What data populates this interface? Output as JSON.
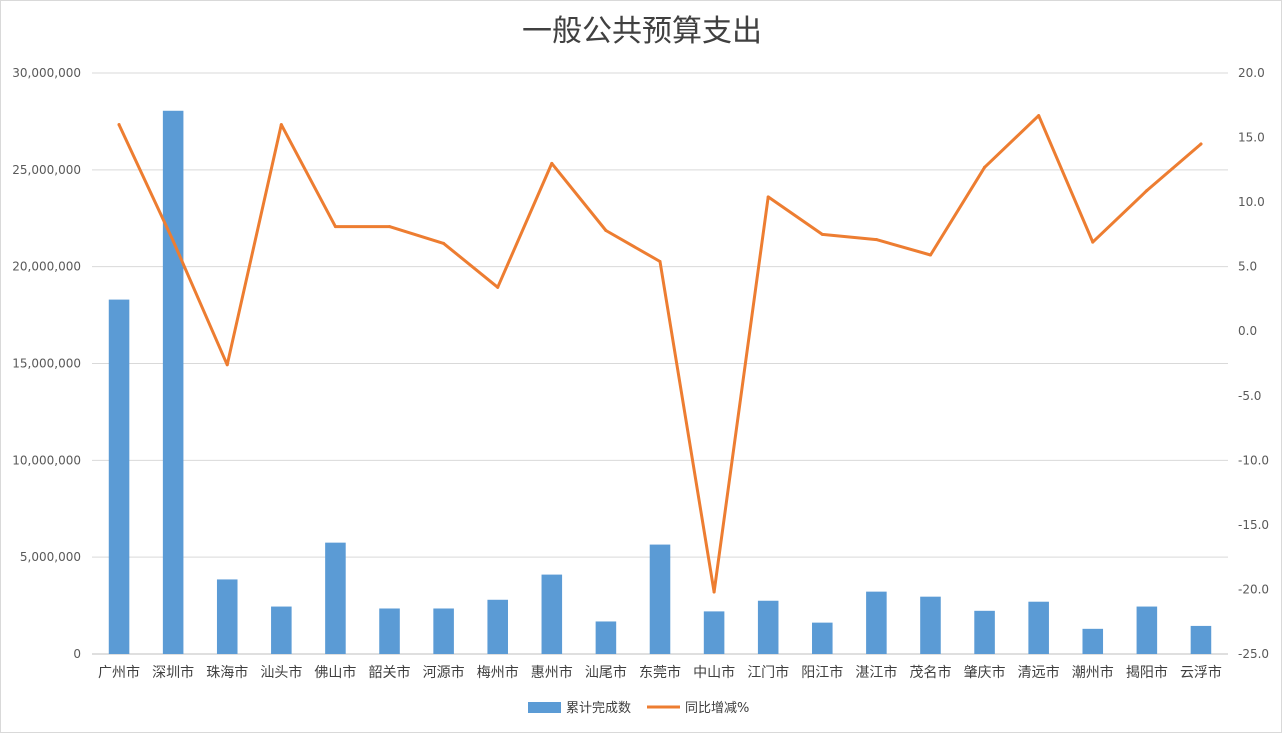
{
  "chart_data": {
    "type": "bar",
    "title": "一般公共预算支出",
    "categories": [
      "广州市",
      "深圳市",
      "珠海市",
      "汕头市",
      "佛山市",
      "韶关市",
      "河源市",
      "梅州市",
      "惠州市",
      "汕尾市",
      "东莞市",
      "中山市",
      "江门市",
      "阳江市",
      "湛江市",
      "茂名市",
      "肇庆市",
      "清远市",
      "潮州市",
      "揭阳市",
      "云浮市"
    ],
    "series": [
      {
        "name": "累计完成数",
        "type": "bar",
        "axis": "left",
        "color": "#5b9bd5",
        "values": [
          18300000,
          28050000,
          3850000,
          2450000,
          5750000,
          2350000,
          2350000,
          2800000,
          4100000,
          1680000,
          5650000,
          2200000,
          2750000,
          1620000,
          3220000,
          2960000,
          2230000,
          2700000,
          1300000,
          2450000,
          1450000
        ]
      },
      {
        "name": "同比增减%",
        "type": "line",
        "axis": "right",
        "color": "#ed7d31",
        "values": [
          16.0,
          7.0,
          -2.6,
          16.0,
          8.1,
          8.1,
          6.8,
          3.4,
          13.0,
          7.8,
          5.4,
          -20.2,
          10.4,
          7.5,
          7.1,
          5.9,
          12.7,
          16.7,
          6.9,
          10.9,
          14.5
        ]
      }
    ],
    "left_axis": {
      "ylim": [
        0,
        30000000
      ],
      "ticks": [
        0,
        5000000,
        10000000,
        15000000,
        20000000,
        25000000,
        30000000
      ],
      "tick_labels": [
        "0",
        "5,000,000",
        "10,000,000",
        "15,000,000",
        "20,000,000",
        "25,000,000",
        "30,000,000"
      ]
    },
    "right_axis": {
      "ylim": [
        -25,
        20
      ],
      "ticks": [
        20,
        15,
        10,
        5,
        0,
        -5,
        -10,
        -15,
        -20,
        -25
      ],
      "tick_labels": [
        "20.0",
        "15.0",
        "10.0",
        "5.0",
        "0.0",
        "-5.0",
        "-10.0",
        "-15.0",
        "-20.0",
        "-25.0"
      ]
    },
    "xlabel": "",
    "ylabel": "",
    "grid": true,
    "legend_position": "bottom"
  }
}
